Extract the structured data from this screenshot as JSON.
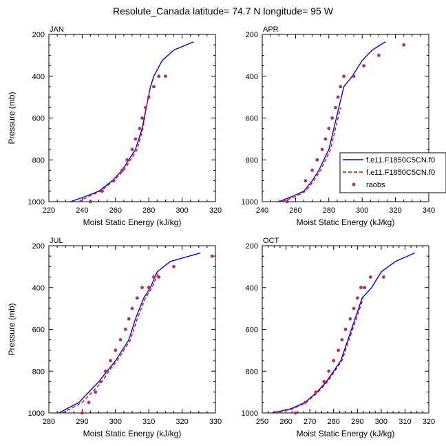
{
  "figure": {
    "title": "Resolute_Canada  latitude= 74.7 N longitude= 95 W"
  },
  "colors": {
    "model1": "#0000e0",
    "model2": "#e00000",
    "raobs": "#b03060"
  },
  "chart_data": [
    {
      "type": "line",
      "panel_label": "JAN",
      "xlabel": "Moist Static Energy (kJ/kg)",
      "ylabel": "Pressure (mb)",
      "xlim": [
        220,
        320
      ],
      "xticks": [
        220,
        240,
        260,
        280,
        300,
        320
      ],
      "ylim": [
        1000,
        200
      ],
      "yticks": [
        200,
        400,
        600,
        800,
        1000
      ],
      "y_reversed": true,
      "legend": null,
      "series": [
        {
          "kind": "line",
          "style": "solid",
          "color": "#0000e0",
          "x": [
            233,
            242,
            250,
            258,
            264,
            268,
            272,
            276,
            278.5,
            281,
            283,
            288,
            295,
            307
          ],
          "y": [
            1000,
            975,
            950,
            900,
            850,
            800,
            750,
            650,
            550,
            450,
            400,
            325,
            275,
            235
          ]
        },
        {
          "kind": "line",
          "style": "dashed",
          "color": "#e00000",
          "x": [
            238,
            244,
            251,
            259,
            265,
            269,
            273,
            276.5,
            278.5,
            281
          ],
          "y": [
            1000,
            975,
            950,
            900,
            850,
            800,
            750,
            650,
            550,
            450
          ]
        },
        {
          "kind": "points",
          "color": "#b03060",
          "x": [
            245,
            252,
            259,
            264,
            267,
            270,
            272,
            274.5,
            276,
            278,
            280,
            283,
            286,
            290
          ],
          "y": [
            1000,
            950,
            900,
            850,
            800,
            750,
            700,
            650,
            600,
            550,
            500,
            450,
            400,
            400
          ]
        }
      ]
    },
    {
      "type": "line",
      "panel_label": "APR",
      "xlabel": "Moist Static Energy (kJ/kg)",
      "ylabel": "",
      "xlim": [
        240,
        340
      ],
      "xticks": [
        240,
        260,
        280,
        300,
        320,
        340
      ],
      "ylim": [
        1000,
        200
      ],
      "yticks": [
        200,
        400,
        600,
        800,
        1000
      ],
      "y_reversed": true,
      "legend": {
        "position": "right",
        "entries": [
          "f.e11.F1850C5CN.f0",
          "f.e11.F1850C5CN.f0",
          "raobs"
        ]
      },
      "series": [
        {
          "kind": "line",
          "style": "solid",
          "color": "#0000e0",
          "x": [
            250,
            258,
            265,
            270,
            274,
            277,
            280,
            283,
            286,
            289,
            294,
            300,
            306,
            314
          ],
          "y": [
            1000,
            975,
            950,
            900,
            850,
            800,
            750,
            650,
            550,
            450,
            400,
            325,
            275,
            235
          ]
        },
        {
          "kind": "line",
          "style": "dashed",
          "color": "#e00000",
          "x": [
            252,
            260,
            266,
            271,
            275,
            278,
            281,
            284,
            287
          ],
          "y": [
            1000,
            975,
            950,
            900,
            850,
            800,
            750,
            650,
            550
          ]
        },
        {
          "kind": "points",
          "color": "#b03060",
          "x": [
            255,
            266,
            270,
            273,
            276,
            278,
            280,
            282,
            284,
            285.5,
            287,
            289,
            295,
            301,
            310,
            325
          ],
          "y": [
            1000,
            900,
            850,
            800,
            750,
            700,
            650,
            600,
            550,
            500,
            450,
            400,
            400,
            350,
            300,
            250
          ]
        }
      ]
    },
    {
      "type": "line",
      "panel_label": "JUL",
      "xlabel": "Moist Static Energy (kJ/kg)",
      "ylabel": "Pressure (mb)",
      "xlim": [
        280,
        330
      ],
      "xticks": [
        280,
        290,
        300,
        310,
        320,
        330
      ],
      "ylim": [
        1000,
        200
      ],
      "yticks": [
        200,
        400,
        600,
        800,
        1000
      ],
      "y_reversed": true,
      "legend": null,
      "series": [
        {
          "kind": "line",
          "style": "solid",
          "color": "#0000e0",
          "x": [
            283,
            286,
            289,
            292,
            295,
            297.5,
            300,
            302,
            304,
            306,
            308.5,
            310.5,
            312.5,
            316.5,
            325.5
          ],
          "y": [
            1000,
            975,
            950,
            900,
            850,
            800,
            750,
            700,
            650,
            550,
            450,
            400,
            325,
            275,
            235
          ]
        },
        {
          "kind": "line",
          "style": "dashed",
          "color": "#e00000",
          "x": [
            284,
            287,
            290,
            293,
            296,
            298,
            300.5,
            302.5,
            304.5,
            306.5,
            309,
            311,
            313
          ],
          "y": [
            1000,
            975,
            950,
            900,
            850,
            800,
            750,
            700,
            650,
            550,
            450,
            400,
            325
          ]
        },
        {
          "kind": "points",
          "color": "#b03060",
          "x": [
            290,
            292,
            294,
            295.5,
            297,
            298.5,
            300,
            301.5,
            303,
            304,
            305,
            306.5,
            308,
            310,
            311.5,
            313,
            317.5,
            329
          ],
          "y": [
            1000,
            950,
            900,
            850,
            800,
            750,
            700,
            650,
            600,
            550,
            500,
            450,
            400,
            400,
            350,
            350,
            300,
            250
          ]
        }
      ]
    },
    {
      "type": "line",
      "panel_label": "OCT",
      "xlabel": "Moist Static Energy (kJ/kg)",
      "ylabel": "",
      "xlim": [
        250,
        320
      ],
      "xticks": [
        250,
        260,
        270,
        280,
        290,
        300,
        310,
        320
      ],
      "ylim": [
        1000,
        200
      ],
      "yticks": [
        200,
        400,
        600,
        800,
        1000
      ],
      "y_reversed": true,
      "legend": null,
      "series": [
        {
          "kind": "line",
          "style": "solid",
          "color": "#0000e0",
          "x": [
            254,
            262,
            268,
            273,
            277,
            280,
            283,
            286,
            289,
            292,
            296,
            300,
            306,
            314
          ],
          "y": [
            1000,
            980,
            950,
            900,
            850,
            800,
            750,
            650,
            550,
            450,
            400,
            325,
            275,
            235
          ]
        },
        {
          "kind": "line",
          "style": "dashed",
          "color": "#e00000",
          "x": [
            255,
            263,
            268.5,
            273.5,
            277.5,
            280.5,
            283.5,
            286.5,
            289.5,
            292.5
          ],
          "y": [
            1000,
            980,
            950,
            900,
            850,
            800,
            750,
            650,
            550,
            450
          ]
        },
        {
          "kind": "points",
          "color": "#b03060",
          "x": [
            264,
            268,
            272.5,
            276,
            278,
            280,
            282,
            283.5,
            285,
            287,
            288.5,
            290,
            291.5,
            293,
            295.5,
            301
          ],
          "y": [
            1000,
            950,
            900,
            850,
            800,
            750,
            700,
            650,
            600,
            550,
            500,
            450,
            400,
            400,
            350,
            350
          ]
        }
      ]
    }
  ]
}
